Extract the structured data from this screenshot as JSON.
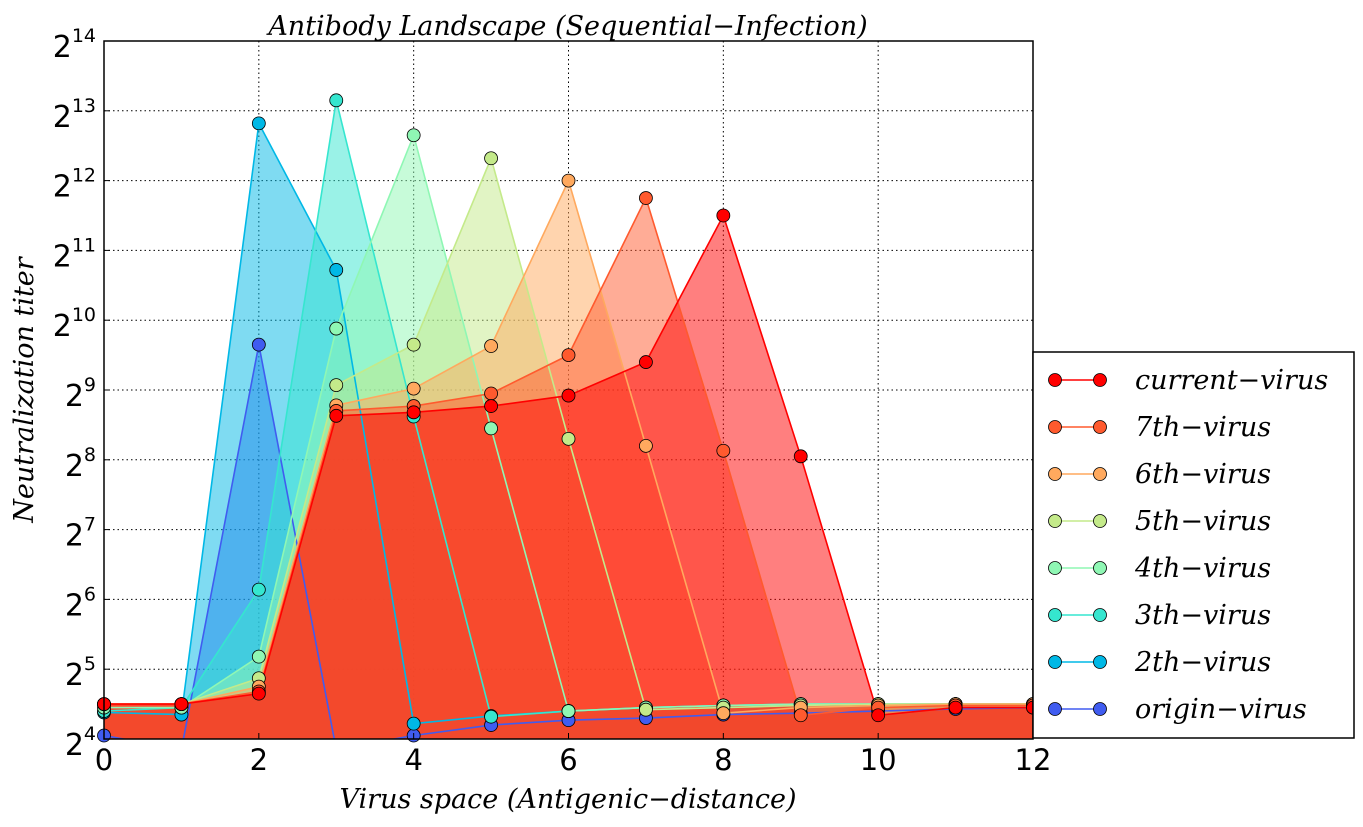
{
  "chart_data": {
    "type": "area",
    "title": "Antibody Landscape (Sequential−Infection)",
    "xlabel": "Virus space (Antigenic−distance)",
    "ylabel": "Neutralization  titer",
    "xlim": [
      0,
      12
    ],
    "ylim_log2": [
      4,
      14
    ],
    "y_scale": "log2",
    "x_ticks": [
      0,
      2,
      4,
      6,
      8,
      10,
      12
    ],
    "y_tick_base": "2",
    "y_tick_exponents": [
      "4",
      "5",
      "6",
      "7",
      "8",
      "9",
      "10",
      "11",
      "12",
      "13",
      "14"
    ],
    "grid": true,
    "legend_position": "right",
    "x": [
      0,
      1,
      2,
      3,
      4,
      5,
      6,
      7,
      8,
      9,
      10,
      11,
      12
    ],
    "series": [
      {
        "name": "current−virus",
        "color": "#ff0000",
        "log2_values": [
          4.5,
          4.5,
          4.65,
          8.63,
          8.68,
          8.77,
          8.92,
          9.4,
          11.5,
          8.05,
          4.34,
          4.45,
          4.45
        ]
      },
      {
        "name": "7th−virus",
        "color": "#ff5a2e",
        "log2_values": [
          4.5,
          4.5,
          4.68,
          8.7,
          8.77,
          8.95,
          9.5,
          11.75,
          8.13,
          4.34,
          4.45,
          4.48,
          4.48
        ]
      },
      {
        "name": "6th−virus",
        "color": "#ffa95e",
        "log2_values": [
          4.5,
          4.5,
          4.75,
          8.78,
          9.02,
          9.63,
          12.0,
          8.2,
          4.37,
          4.45,
          4.48,
          4.5,
          4.5
        ]
      },
      {
        "name": "5th−virus",
        "color": "#c4ea8a",
        "log2_values": [
          4.5,
          4.5,
          4.87,
          9.07,
          9.65,
          12.32,
          8.3,
          4.42,
          4.45,
          4.48,
          4.5,
          4.5,
          4.5
        ]
      },
      {
        "name": "4th−virus",
        "color": "#8ff7b4",
        "log2_values": [
          4.45,
          4.45,
          5.18,
          9.88,
          12.65,
          8.45,
          4.4,
          4.45,
          4.48,
          4.5,
          4.5,
          4.5,
          4.5
        ]
      },
      {
        "name": "3th−virus",
        "color": "#35e6cf",
        "log2_values": [
          4.4,
          4.45,
          6.14,
          13.15,
          8.62,
          4.32,
          4.4,
          4.45,
          4.48,
          4.5,
          4.5,
          4.5,
          4.5
        ]
      },
      {
        "name": "2th−virus",
        "color": "#00b8e6",
        "log2_values": [
          4.38,
          4.35,
          12.82,
          10.72,
          4.22,
          4.33,
          4.4,
          4.45,
          4.48,
          4.5,
          4.5,
          4.5,
          4.5
        ]
      },
      {
        "name": "origin−virus",
        "color": "#405cf0",
        "log2_values": [
          4.05,
          3.85,
          9.65,
          3.85,
          4.05,
          4.2,
          4.27,
          4.3,
          4.35,
          4.37,
          4.4,
          4.43,
          4.45
        ]
      }
    ]
  }
}
